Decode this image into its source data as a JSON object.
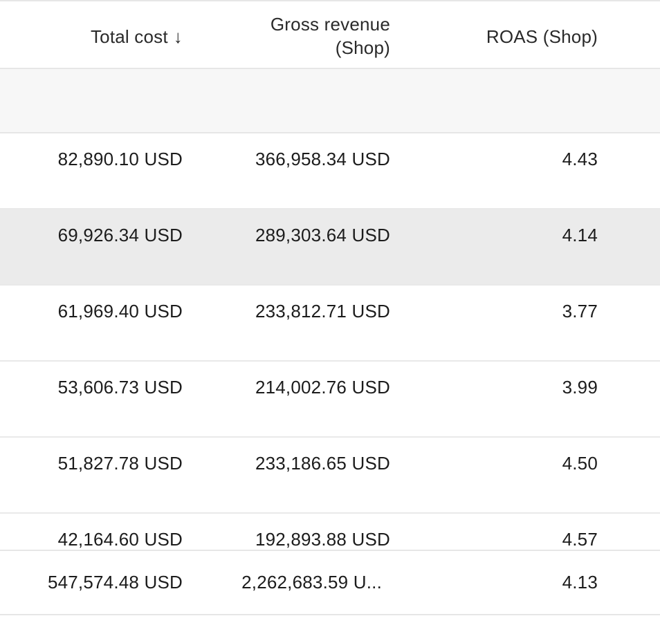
{
  "columns": {
    "total_cost": "Total cost",
    "total_cost_sort_icon": "↓",
    "gross_revenue_line1": "Gross revenue",
    "gross_revenue_line2": "(Shop)",
    "roas": "ROAS (Shop)"
  },
  "rows": [
    {
      "total_cost": "82,890.10 USD",
      "gross_revenue": "366,958.34 USD",
      "roas": "4.43"
    },
    {
      "total_cost": "69,926.34 USD",
      "gross_revenue": "289,303.64 USD",
      "roas": "4.14"
    },
    {
      "total_cost": "61,969.40 USD",
      "gross_revenue": "233,812.71 USD",
      "roas": "3.77"
    },
    {
      "total_cost": "53,606.73 USD",
      "gross_revenue": "214,002.76 USD",
      "roas": "3.99"
    },
    {
      "total_cost": "51,827.78 USD",
      "gross_revenue": "233,186.65 USD",
      "roas": "4.50"
    },
    {
      "total_cost": "42,164.60 USD",
      "gross_revenue": "192,893.88 USD",
      "roas": "4.57"
    }
  ],
  "totals": {
    "total_cost": "547,574.48 USD",
    "gross_revenue": "2,262,683.59 U...",
    "roas": "4.13"
  }
}
